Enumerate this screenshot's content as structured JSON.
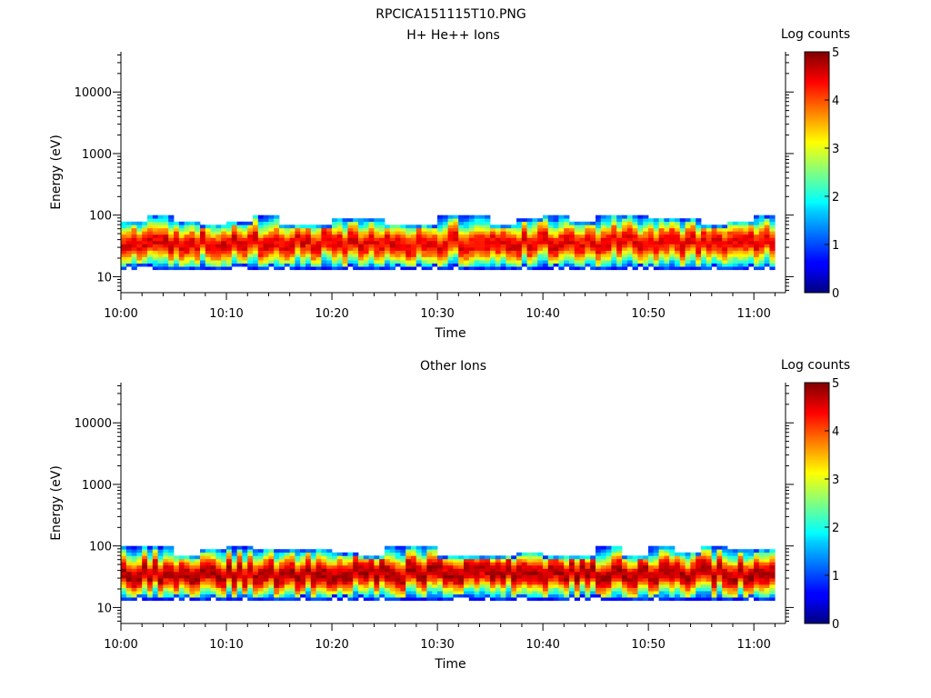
{
  "page_title": "RPCICA151115T10.PNG",
  "colorbar": {
    "label": "Log counts",
    "ticks": [
      "0",
      "1",
      "2",
      "3",
      "4",
      "5"
    ],
    "range": [
      0,
      5
    ],
    "colormap": "jet"
  },
  "chart_data": [
    {
      "type": "heatmap",
      "title": "H+ He++ Ions",
      "xlabel": "Time",
      "ylabel": "Energy (eV)",
      "xticks": [
        "10:00",
        "10:10",
        "10:20",
        "10:30",
        "10:40",
        "10:50",
        "11:00"
      ],
      "xlim_minutes": [
        0,
        63
      ],
      "yticks": [
        "10",
        "100",
        "1000",
        "10000"
      ],
      "ylim": [
        5.5,
        45000
      ],
      "yscale": "log",
      "energy_band": [
        13,
        100
      ],
      "peak_energy": [
        28,
        45
      ],
      "zlim": [
        0,
        5
      ],
      "peak_log_counts": 4.5
    },
    {
      "type": "heatmap",
      "title": "Other Ions",
      "xlabel": "Time",
      "ylabel": "Energy (eV)",
      "xticks": [
        "10:00",
        "10:10",
        "10:20",
        "10:30",
        "10:40",
        "10:50",
        "11:00"
      ],
      "xlim_minutes": [
        0,
        63
      ],
      "yticks": [
        "10",
        "100",
        "1000",
        "10000"
      ],
      "ylim": [
        5.5,
        45000
      ],
      "yscale": "log",
      "energy_band": [
        13,
        100
      ],
      "peak_energy": [
        28,
        45
      ],
      "zlim": [
        0,
        5
      ],
      "peak_log_counts": 4.8
    }
  ]
}
